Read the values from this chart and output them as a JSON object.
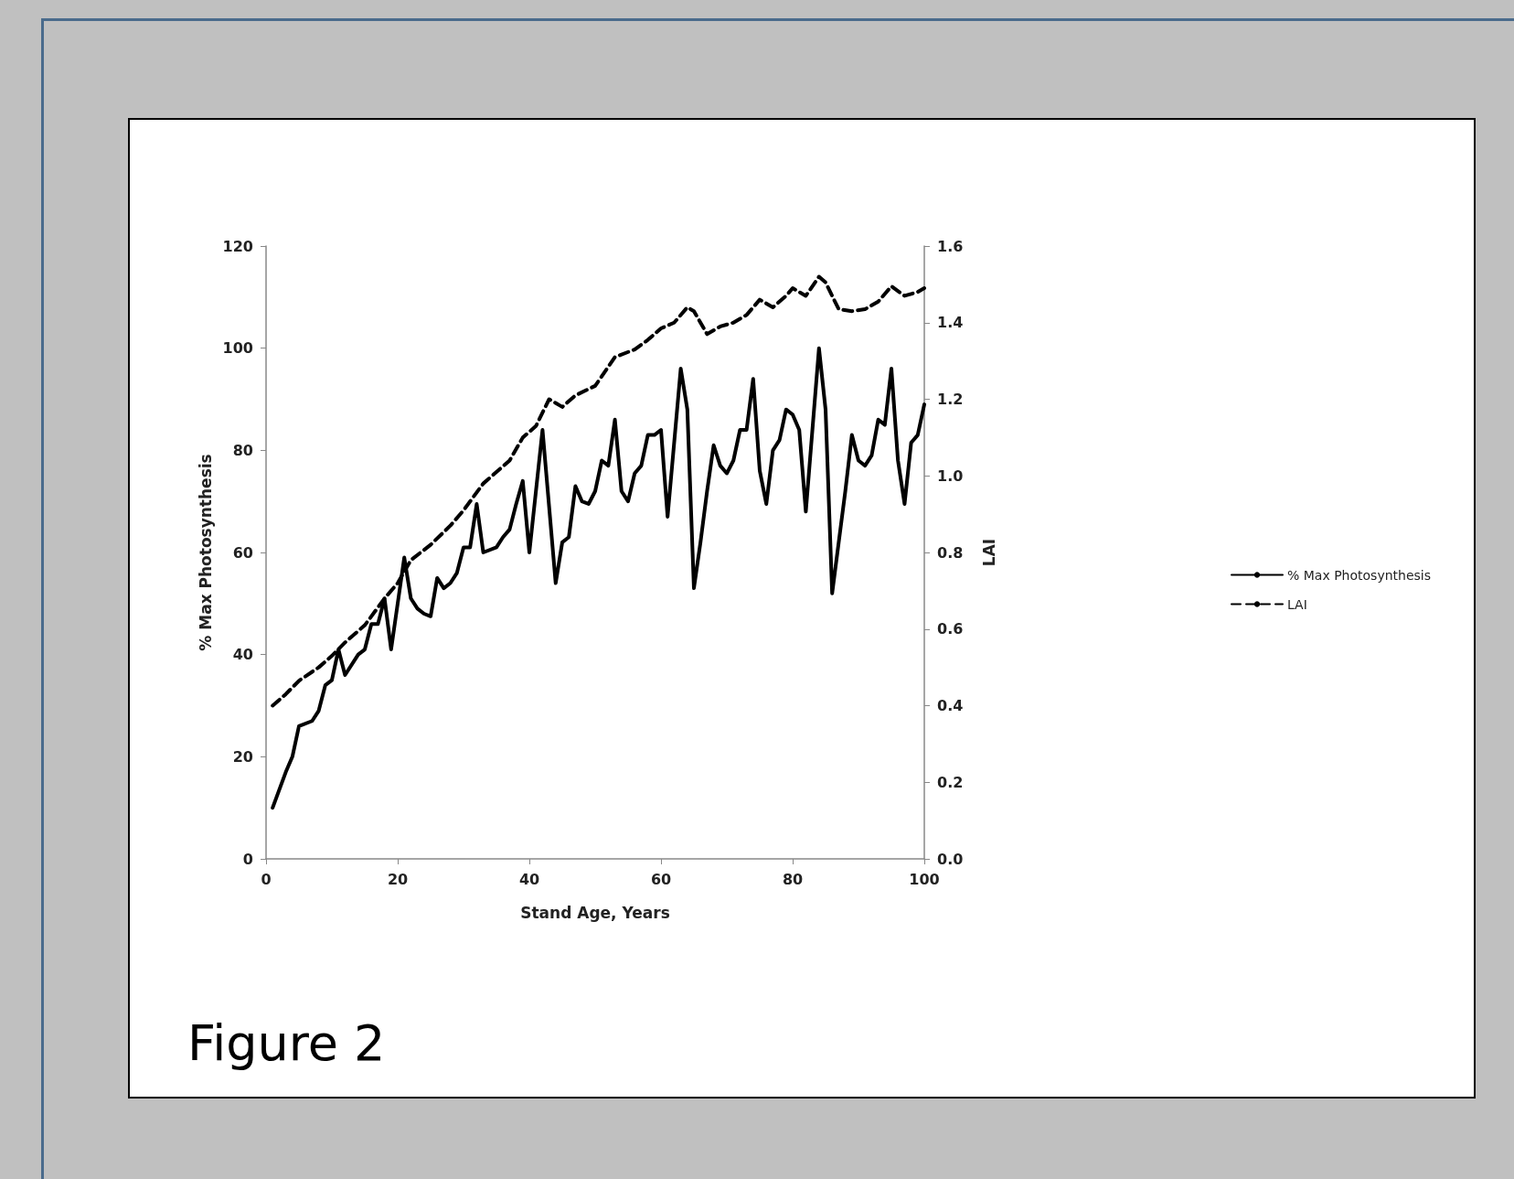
{
  "chart_data": {
    "type": "line",
    "xlabel": "Stand Age, Years",
    "ylabel": "% Max Photosynthesis",
    "y2label": "LAI",
    "xlim": [
      0,
      100
    ],
    "xticks": [
      0,
      20,
      40,
      60,
      80,
      100
    ],
    "ylim": [
      0,
      120
    ],
    "yticks": [
      0,
      20,
      40,
      60,
      80,
      100,
      120
    ],
    "y2lim": [
      0,
      1.6
    ],
    "y2ticks": [
      {
        "value": 0,
        "label": "0.0"
      },
      {
        "value": 0.2,
        "label": "0.2"
      },
      {
        "value": 0.4,
        "label": "0.4"
      },
      {
        "value": 0.6,
        "label": "0.6"
      },
      {
        "value": 0.8,
        "label": "0.8"
      },
      {
        "value": 1,
        "label": "1.0"
      },
      {
        "value": 1.2,
        "label": "1.2"
      },
      {
        "value": 1.4,
        "label": "1.4"
      },
      {
        "value": 1.6,
        "label": "1.6"
      }
    ],
    "grid": false,
    "legend": "right",
    "marker": "none",
    "annotations": [
      "Figure 2"
    ],
    "series": [
      {
        "name": "% Max Photosynthesis",
        "color": "#000000",
        "line_style": "solid",
        "x": [
          1,
          3,
          4,
          5,
          7,
          8,
          9,
          10,
          11,
          12,
          14,
          15,
          16,
          17,
          18,
          19,
          21,
          22,
          23,
          24,
          25,
          26,
          27,
          28,
          29,
          30,
          31,
          32,
          33,
          35,
          36,
          37,
          38,
          39,
          40,
          42,
          44,
          45,
          46,
          47,
          48,
          49,
          50,
          51,
          52,
          53,
          54,
          55,
          56,
          57,
          58,
          59,
          60,
          61,
          63,
          64,
          65,
          66,
          67,
          68,
          69,
          70,
          71,
          72,
          73,
          74,
          75,
          76,
          77,
          78,
          79,
          80,
          81,
          82,
          83,
          84,
          85,
          86,
          87,
          88,
          89,
          90,
          91,
          92,
          93,
          94,
          95,
          96,
          97,
          98,
          99,
          100
        ],
        "values": [
          10,
          17,
          20,
          26,
          27,
          29,
          34,
          35,
          41,
          36,
          40,
          41,
          46,
          46,
          51,
          41,
          59,
          51,
          49,
          48,
          47.5,
          55,
          53,
          54,
          56,
          61,
          61,
          69.5,
          60,
          61,
          63,
          64.5,
          69.5,
          74,
          60,
          84,
          54,
          62,
          63,
          73,
          70,
          69.5,
          72,
          78,
          77,
          86,
          72,
          70,
          75.5,
          77,
          83,
          83,
          84,
          67,
          96,
          88,
          53,
          62,
          72,
          81,
          77,
          75.5,
          78,
          84,
          84,
          94,
          76,
          69.5,
          80,
          82,
          88,
          87,
          84,
          68,
          84,
          100,
          88,
          52,
          62,
          72,
          83,
          78,
          77,
          79,
          86,
          85,
          96,
          78,
          69.5,
          81.5,
          83,
          89
        ]
      },
      {
        "name": "LAI",
        "color": "#000000",
        "line_style": "dashed",
        "axis": "y2",
        "x": [
          1,
          3,
          5,
          8,
          10,
          12,
          15,
          18,
          20,
          22,
          25,
          28,
          30,
          33,
          35,
          37,
          39,
          41,
          43,
          45,
          47,
          50,
          53,
          56,
          58,
          60,
          62,
          64,
          65,
          67,
          69,
          71,
          73,
          75,
          77,
          79,
          80,
          82,
          84,
          85,
          87,
          89,
          91,
          93,
          95,
          97,
          99,
          100
        ],
        "values": [
          0.4,
          0.43,
          0.465,
          0.5,
          0.53,
          0.565,
          0.61,
          0.68,
          0.72,
          0.78,
          0.82,
          0.87,
          0.91,
          0.98,
          1.01,
          1.04,
          1.1,
          1.13,
          1.2,
          1.18,
          1.21,
          1.235,
          1.31,
          1.33,
          1.355,
          1.385,
          1.4,
          1.44,
          1.43,
          1.37,
          1.39,
          1.4,
          1.42,
          1.46,
          1.44,
          1.47,
          1.49,
          1.47,
          1.52,
          1.505,
          1.435,
          1.43,
          1.435,
          1.455,
          1.495,
          1.47,
          1.48,
          1.49
        ]
      }
    ]
  }
}
